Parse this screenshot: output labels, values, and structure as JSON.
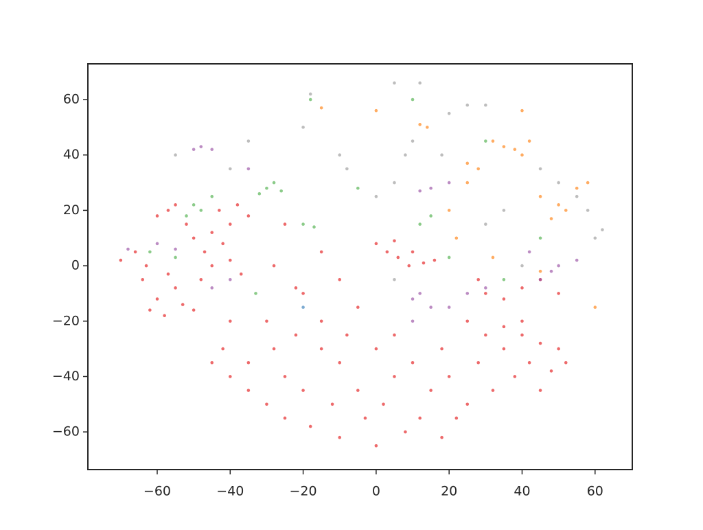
{
  "chart_data": {
    "type": "scatter",
    "xlim": [
      -79,
      70.2
    ],
    "ylim": [
      -73.6,
      72.9
    ],
    "xticks": [
      {
        "value": -60,
        "label": "−60"
      },
      {
        "value": -40,
        "label": "−40"
      },
      {
        "value": -20,
        "label": "−20"
      },
      0,
      20,
      40,
      60
    ],
    "yticks": [
      {
        "value": -60,
        "label": "−60"
      },
      {
        "value": -40,
        "label": "−40"
      },
      {
        "value": -20,
        "label": "−20"
      },
      0,
      20,
      40,
      60
    ],
    "series": [
      {
        "color": "#e41a1c",
        "x": [
          -70,
          -66,
          -63,
          -60,
          -57,
          -55,
          -52,
          -50,
          -47,
          -45,
          -48,
          -55,
          -60,
          -62,
          -58,
          -53,
          -50,
          -57,
          -64,
          -42,
          -40,
          -38,
          -35,
          -43,
          -45,
          -40,
          -37,
          -45,
          -40,
          -42,
          -35,
          -30,
          -35,
          -25,
          -20,
          -28,
          -22,
          -15,
          -10,
          -12,
          -5,
          -8,
          0,
          -3,
          5,
          2,
          8,
          0,
          -10,
          -18,
          -25,
          12,
          15,
          10,
          18,
          20,
          22,
          18,
          25,
          28,
          30,
          32,
          35,
          38,
          40,
          42,
          45,
          48,
          50,
          52,
          45,
          40,
          35,
          25,
          -40,
          -30,
          -15,
          -5,
          5,
          -20,
          -10,
          0,
          3,
          6,
          10,
          13,
          16,
          5,
          9,
          30,
          35,
          40,
          45,
          50,
          28,
          -25,
          -15,
          -28,
          -22
        ],
        "values": [
          2,
          5,
          0,
          18,
          20,
          22,
          15,
          10,
          5,
          0,
          -5,
          -8,
          -12,
          -16,
          -18,
          -14,
          -16,
          -3,
          -5,
          8,
          15,
          22,
          18,
          20,
          12,
          2,
          -3,
          -35,
          -40,
          -30,
          -45,
          -50,
          -35,
          -40,
          -45,
          -30,
          -25,
          -30,
          -35,
          -50,
          -45,
          -25,
          -30,
          -55,
          -40,
          -50,
          -60,
          -65,
          -62,
          -58,
          -55,
          -55,
          -45,
          -35,
          -30,
          -40,
          -55,
          -62,
          -50,
          -35,
          -25,
          -45,
          -30,
          -40,
          -25,
          -35,
          -28,
          -38,
          -30,
          -35,
          -45,
          -20,
          -22,
          -20,
          -20,
          -20,
          -20,
          -15,
          -25,
          -10,
          -5,
          8,
          5,
          3,
          5,
          1,
          2,
          9,
          0,
          -10,
          -12,
          -8,
          -5,
          -10,
          -5,
          15,
          5,
          0,
          -8
        ]
      },
      {
        "color": "#ff7f0e",
        "x": [
          25,
          28,
          32,
          35,
          38,
          40,
          42,
          14,
          12,
          45,
          50,
          52,
          55,
          48,
          60,
          32,
          20,
          25,
          0,
          40,
          58,
          22,
          45,
          -15
        ],
        "values": [
          37,
          35,
          45,
          43,
          42,
          40,
          45,
          50,
          51,
          25,
          22,
          20,
          28,
          17,
          -15,
          3,
          20,
          30,
          56,
          56,
          30,
          10,
          -2,
          57
        ]
      },
      {
        "color": "#4daf4a",
        "x": [
          -30,
          -28,
          -26,
          -32,
          -50,
          -48,
          -52,
          -45,
          -62,
          -55,
          -33,
          -20,
          -17,
          12,
          15,
          10,
          30,
          45,
          -18,
          -5,
          20,
          35
        ],
        "values": [
          28,
          30,
          27,
          26,
          22,
          20,
          18,
          25,
          5,
          3,
          -10,
          15,
          14,
          15,
          18,
          60,
          45,
          10,
          60,
          28,
          3,
          -5
        ]
      },
      {
        "color": "#984ea3",
        "x": [
          -50,
          -48,
          -45,
          -68,
          -60,
          -55,
          -45,
          -40,
          10,
          12,
          15,
          20,
          25,
          12,
          15,
          45,
          48,
          42,
          50,
          55,
          -35,
          20,
          10,
          30
        ],
        "values": [
          42,
          43,
          42,
          6,
          8,
          6,
          -8,
          -5,
          -12,
          -10,
          -15,
          -15,
          -10,
          27,
          28,
          -5,
          -2,
          5,
          0,
          2,
          35,
          30,
          -20,
          -8
        ]
      },
      {
        "color": "#999999",
        "x": [
          -55,
          -35,
          -20,
          -10,
          0,
          5,
          8,
          10,
          20,
          25,
          30,
          50,
          55,
          58,
          60,
          62,
          30,
          40,
          35,
          -8,
          18,
          -18,
          5,
          12,
          5,
          -40,
          45
        ],
        "values": [
          40,
          45,
          50,
          40,
          25,
          30,
          40,
          45,
          55,
          58,
          58,
          30,
          25,
          20,
          10,
          13,
          15,
          0,
          20,
          35,
          40,
          62,
          66,
          66,
          -5,
          35,
          35
        ]
      },
      {
        "color": "#377eb8",
        "x": [
          -20
        ],
        "values": [
          -15
        ]
      }
    ]
  }
}
